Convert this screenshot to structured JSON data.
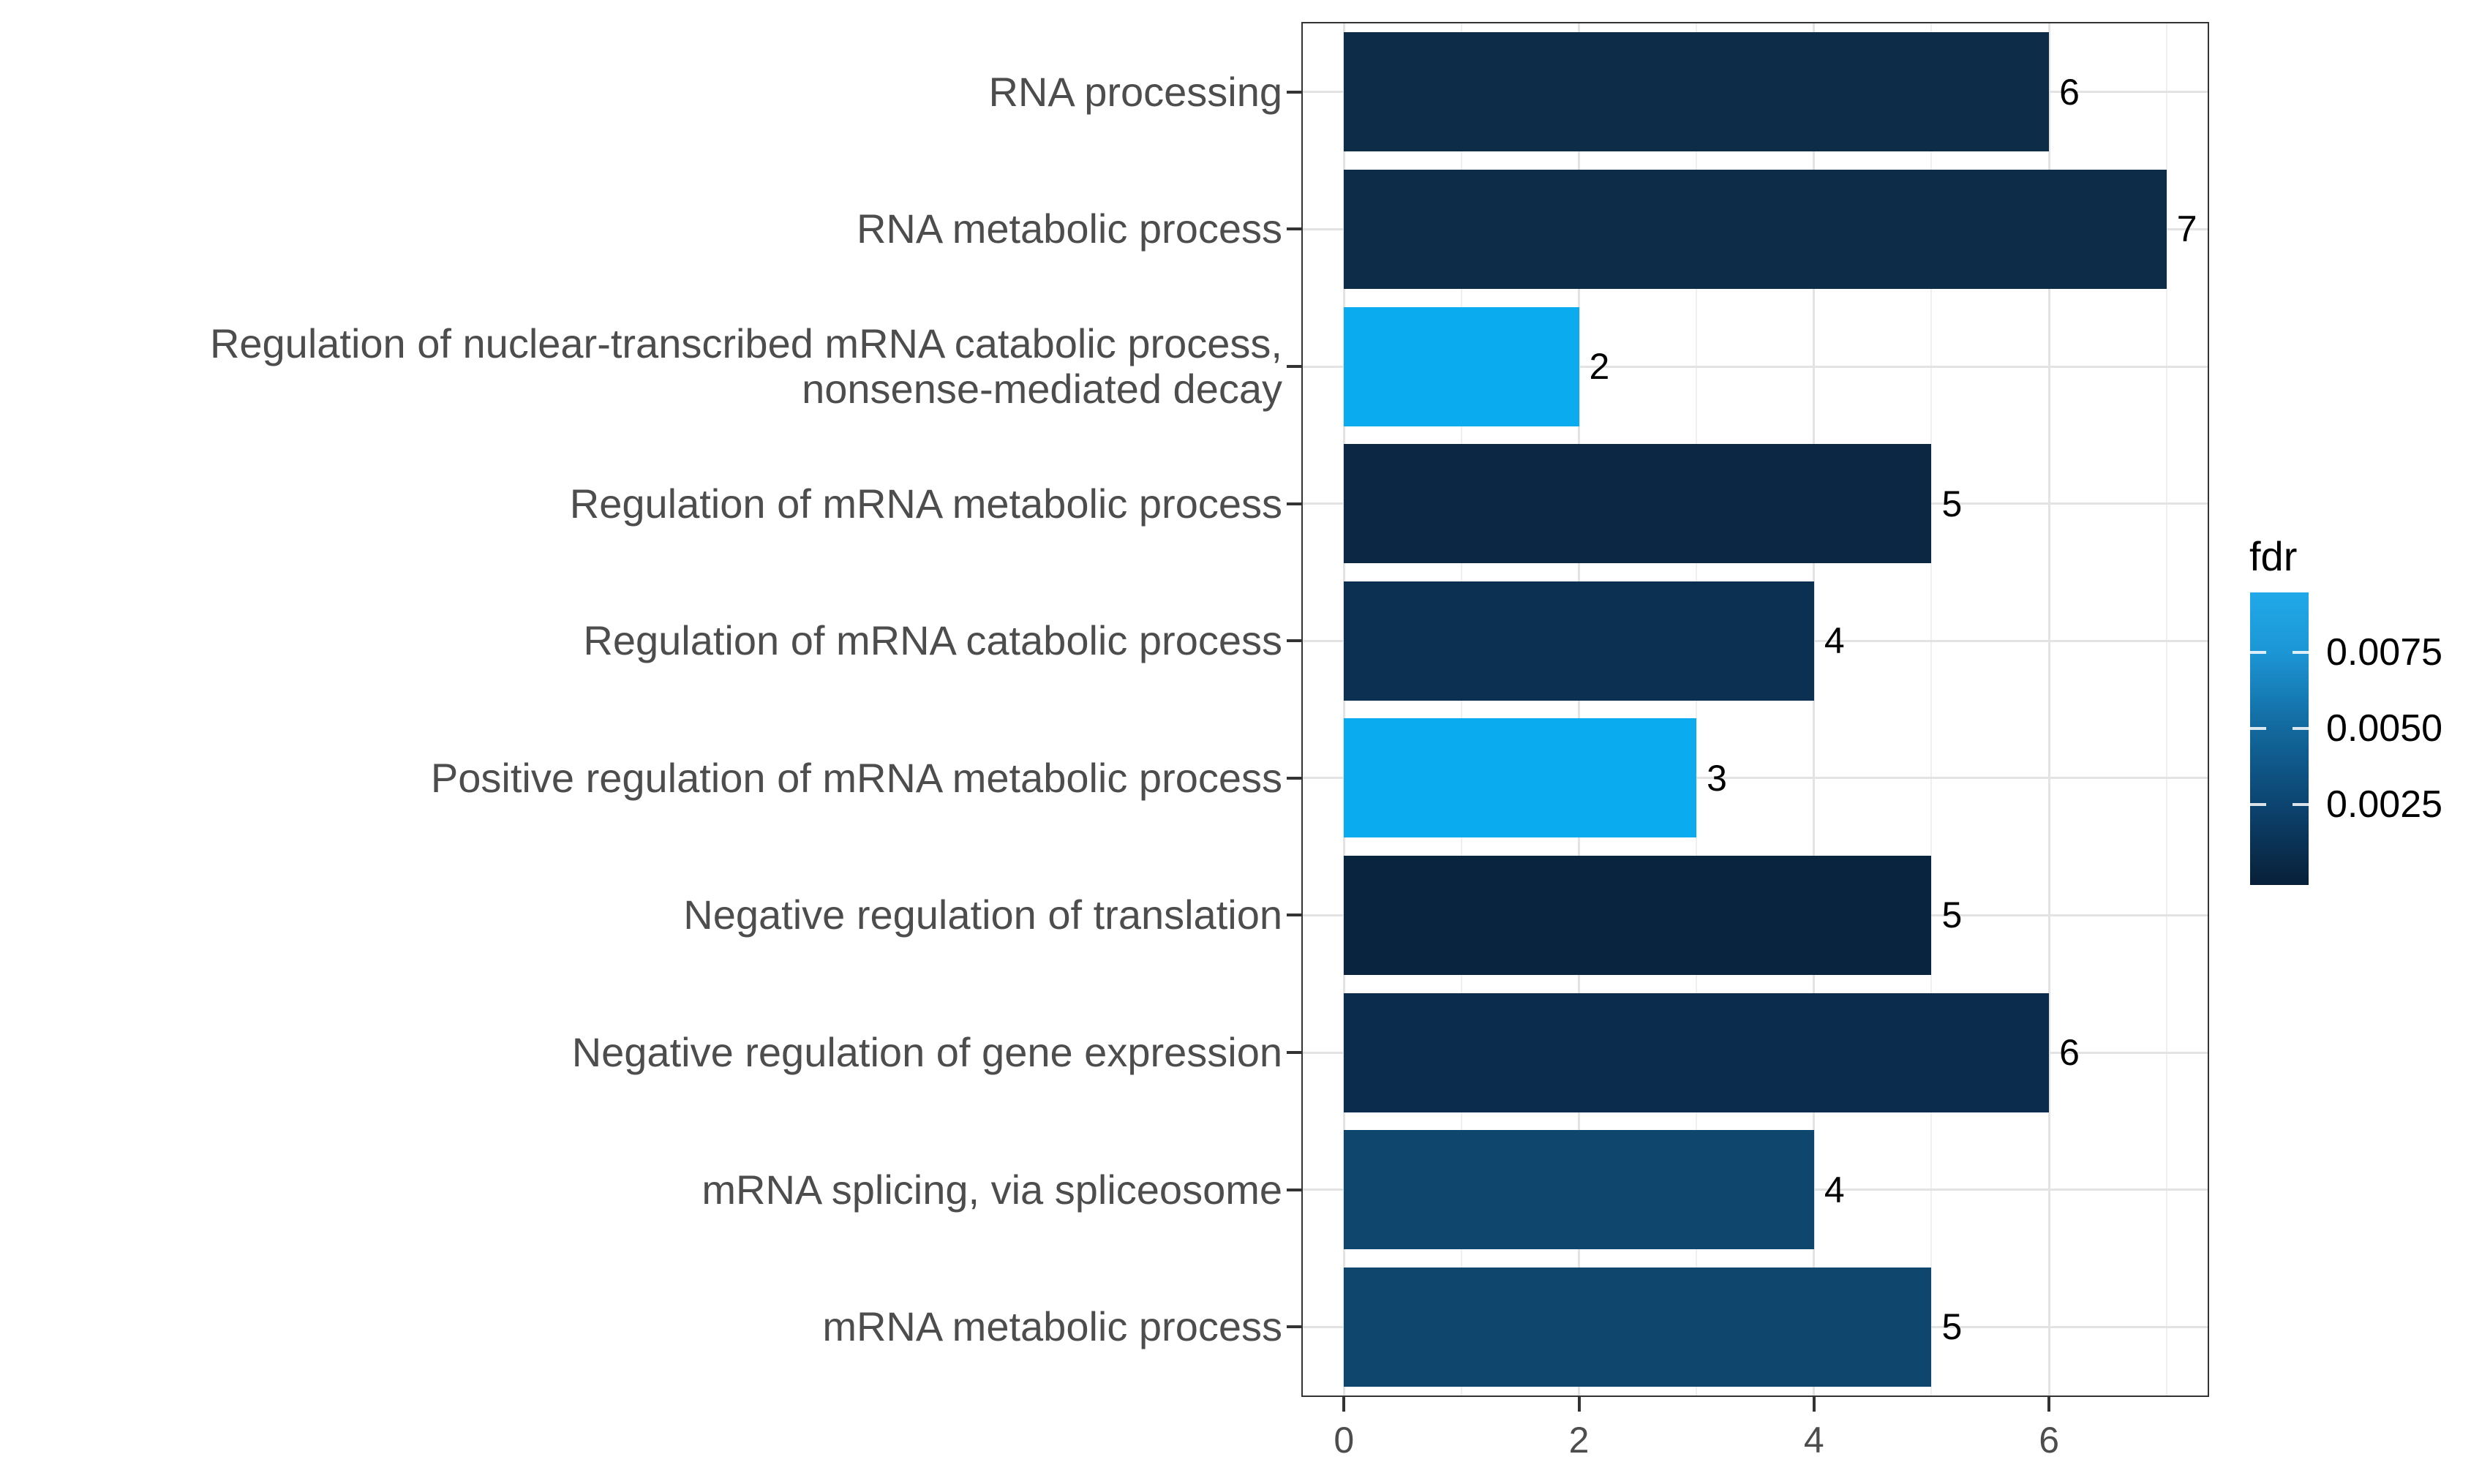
{
  "chart_data": {
    "type": "bar",
    "orientation": "horizontal",
    "title": "",
    "xlabel": "",
    "ylabel": "",
    "categories": [
      "RNA processing",
      "RNA metabolic process",
      "Regulation of nuclear-transcribed mRNA catabolic process,\nnonsense-mediated decay",
      "Regulation of mRNA metabolic process",
      "Regulation of mRNA catabolic process",
      "Positive regulation of mRNA metabolic process",
      "Negative regulation of translation",
      "Negative regulation of gene expression",
      "mRNA splicing, via spliceosome",
      "mRNA metabolic process"
    ],
    "values": [
      6,
      7,
      2,
      5,
      4,
      3,
      5,
      6,
      4,
      5
    ],
    "bar_colors": [
      "#0D2C47",
      "#0D2C47",
      "#0AACEF",
      "#0B2743",
      "#0B3052",
      "#0AACEF",
      "#09243F",
      "#0B2C4C",
      "#0E466D",
      "#0E466D"
    ],
    "x_axis": {
      "tick_labels": [
        "0",
        "2",
        "4",
        "6"
      ],
      "tick_values": [
        0,
        2,
        4,
        6
      ],
      "minor_tick_values": [
        1,
        3,
        5,
        7
      ],
      "range": [
        -0.35,
        7.35
      ],
      "grid": true
    },
    "legend": {
      "title": "fdr",
      "position": "right",
      "tick_labels": [
        "0.0075",
        "0.0050",
        "0.0025"
      ],
      "tick_positions_pct": [
        20.5,
        46.5,
        72.5
      ],
      "gradient_stops": [
        {
          "color": "#21A9E9",
          "pos": 0
        },
        {
          "color": "#1C96D5",
          "pos": 20.5
        },
        {
          "color": "#12699E",
          "pos": 46.5
        },
        {
          "color": "#0C4470",
          "pos": 72.5
        },
        {
          "color": "#081F38",
          "pos": 100
        }
      ]
    },
    "style": {
      "axis_text_color": "#4D4D4D",
      "value_label_color": "#000000",
      "grid_major_color": "#E3E3E3",
      "grid_minor_color": "#EFEFEF",
      "panel_border_color": "#333333",
      "background": "#FFFFFF"
    }
  }
}
